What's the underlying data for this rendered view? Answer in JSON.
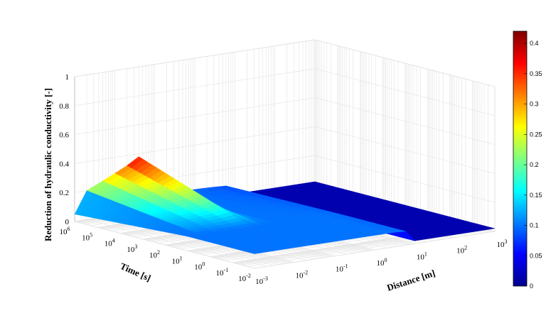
{
  "chart_data": {
    "type": "surface",
    "zlabel": "Reduction of hydraulic conductivity [-]",
    "xlabel": "Time [s]",
    "ylabel": "Distance [m]",
    "time_axis": {
      "scale": "log",
      "lim": [
        0.01,
        1000000
      ],
      "ticks": [
        {
          "b": "10",
          "e": "-2"
        },
        {
          "b": "10",
          "e": "-1"
        },
        {
          "b": "10",
          "e": "0"
        },
        {
          "b": "10",
          "e": "1"
        },
        {
          "b": "10",
          "e": "2"
        },
        {
          "b": "10",
          "e": "3"
        },
        {
          "b": "10",
          "e": "4"
        },
        {
          "b": "10",
          "e": "5"
        },
        {
          "b": "10",
          "e": "6"
        }
      ]
    },
    "distance_axis": {
      "scale": "log",
      "lim": [
        0.001,
        1000
      ],
      "ticks": [
        {
          "b": "10",
          "e": "-3"
        },
        {
          "b": "10",
          "e": "-2"
        },
        {
          "b": "10",
          "e": "-1"
        },
        {
          "b": "10",
          "e": "0"
        },
        {
          "b": "10",
          "e": "1"
        },
        {
          "b": "10",
          "e": "2"
        },
        {
          "b": "10",
          "e": "3"
        }
      ]
    },
    "z_axis": {
      "lim": [
        0,
        1
      ],
      "ticks": [
        "0",
        "0.2",
        "0.4",
        "0.6",
        "0.8",
        "1"
      ]
    },
    "colorbar": {
      "colormap": "jet",
      "lim": [
        0,
        0.42
      ],
      "ticks": [
        "0",
        "0.05",
        "0.1",
        "0.15",
        "0.2",
        "0.25",
        "0.3",
        "0.35",
        "0.4"
      ]
    },
    "grid": true,
    "series": [
      {
        "time_s": 1000000,
        "reduction": [
          0.05,
          0.2,
          0.25,
          0.29,
          0.33,
          0.38,
          0.2,
          0.1,
          0.098,
          0.095,
          0.093,
          0.09,
          0.085,
          0.02,
          0.02
        ]
      },
      {
        "time_s": 10,
        "reduction": [
          0.1,
          0.1,
          0.1,
          0.1,
          0.1,
          0.1,
          0.1,
          0.1,
          0.1,
          0.1,
          0.1,
          0.1,
          0.095,
          0.02,
          0.02
        ]
      },
      {
        "time_s": 0.01,
        "reduction": [
          0.1,
          0.1,
          0.1,
          0.1,
          0.1,
          0.1,
          0.1,
          0.1,
          0.1,
          0.1,
          0.1,
          0.1,
          0.095,
          0.02,
          0.02
        ]
      }
    ],
    "distance_m": [
      0.001,
      0.002,
      0.005,
      0.01,
      0.02,
      0.04,
      0.08,
      0.15,
      0.3,
      0.7,
      1.5,
      3,
      6,
      10,
      1000
    ]
  }
}
